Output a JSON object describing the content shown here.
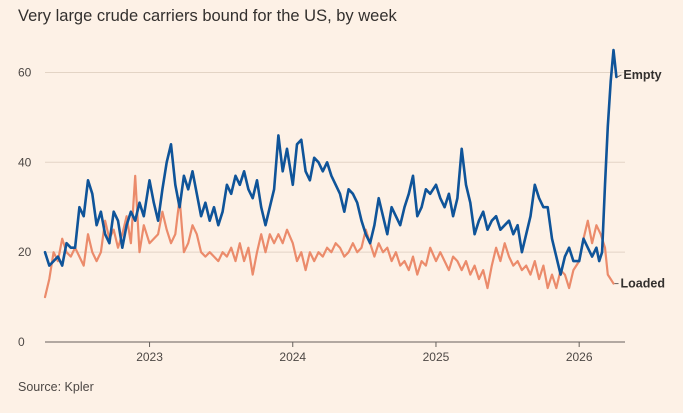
{
  "chart_data": {
    "type": "line",
    "title": "Very large crude carriers bound for the US, by week",
    "source": "Source: Kpler",
    "ylim": [
      0,
      65
    ],
    "y_ticks": [
      0,
      20,
      40,
      60
    ],
    "x_ticks": [
      {
        "label": "2023",
        "x": 2023.0
      },
      {
        "label": "2024",
        "x": 2024.0
      },
      {
        "label": "2025",
        "x": 2025.0
      },
      {
        "label": "2026",
        "x": 2026.0
      }
    ],
    "xlim": [
      2022.27,
      2026.32
    ],
    "grid": true,
    "colors": {
      "empty": "#0f5499",
      "loaded": "#eb8b6b",
      "grid": "#e3d4c5",
      "axis": "#66605c",
      "background": "#fdf1e6"
    },
    "series": [
      {
        "name": "Empty",
        "key": "empty",
        "points": [
          [
            2022.27,
            20
          ],
          [
            2022.3,
            17
          ],
          [
            2022.33,
            18
          ],
          [
            2022.36,
            19
          ],
          [
            2022.39,
            17
          ],
          [
            2022.42,
            22
          ],
          [
            2022.45,
            21
          ],
          [
            2022.48,
            21
          ],
          [
            2022.51,
            30
          ],
          [
            2022.54,
            28
          ],
          [
            2022.57,
            36
          ],
          [
            2022.6,
            33
          ],
          [
            2022.63,
            26
          ],
          [
            2022.66,
            29
          ],
          [
            2022.69,
            24
          ],
          [
            2022.72,
            22
          ],
          [
            2022.75,
            29
          ],
          [
            2022.78,
            27
          ],
          [
            2022.81,
            21
          ],
          [
            2022.84,
            26
          ],
          [
            2022.87,
            29
          ],
          [
            2022.9,
            27
          ],
          [
            2022.93,
            31
          ],
          [
            2022.96,
            28
          ],
          [
            2023.0,
            36
          ],
          [
            2023.03,
            31
          ],
          [
            2023.06,
            27
          ],
          [
            2023.09,
            34
          ],
          [
            2023.12,
            40
          ],
          [
            2023.15,
            44
          ],
          [
            2023.18,
            35
          ],
          [
            2023.21,
            30
          ],
          [
            2023.24,
            37
          ],
          [
            2023.27,
            34
          ],
          [
            2023.3,
            38
          ],
          [
            2023.33,
            33
          ],
          [
            2023.36,
            28
          ],
          [
            2023.39,
            31
          ],
          [
            2023.42,
            27
          ],
          [
            2023.45,
            30
          ],
          [
            2023.48,
            26
          ],
          [
            2023.51,
            29
          ],
          [
            2023.54,
            35
          ],
          [
            2023.57,
            33
          ],
          [
            2023.6,
            37
          ],
          [
            2023.63,
            35
          ],
          [
            2023.66,
            38
          ],
          [
            2023.69,
            34
          ],
          [
            2023.72,
            32
          ],
          [
            2023.75,
            36
          ],
          [
            2023.78,
            30
          ],
          [
            2023.81,
            26
          ],
          [
            2023.84,
            30
          ],
          [
            2023.87,
            34
          ],
          [
            2023.9,
            46
          ],
          [
            2023.93,
            38
          ],
          [
            2023.96,
            43
          ],
          [
            2024.0,
            35
          ],
          [
            2024.03,
            44
          ],
          [
            2024.06,
            45
          ],
          [
            2024.09,
            38
          ],
          [
            2024.12,
            36
          ],
          [
            2024.15,
            41
          ],
          [
            2024.18,
            40
          ],
          [
            2024.21,
            38
          ],
          [
            2024.24,
            40
          ],
          [
            2024.27,
            37
          ],
          [
            2024.3,
            35
          ],
          [
            2024.33,
            33
          ],
          [
            2024.36,
            29
          ],
          [
            2024.39,
            34
          ],
          [
            2024.42,
            33
          ],
          [
            2024.45,
            31
          ],
          [
            2024.48,
            27
          ],
          [
            2024.51,
            24
          ],
          [
            2024.54,
            22
          ],
          [
            2024.57,
            26
          ],
          [
            2024.6,
            32
          ],
          [
            2024.63,
            28
          ],
          [
            2024.66,
            24
          ],
          [
            2024.69,
            30
          ],
          [
            2024.72,
            28
          ],
          [
            2024.75,
            26
          ],
          [
            2024.78,
            30
          ],
          [
            2024.81,
            33
          ],
          [
            2024.84,
            37
          ],
          [
            2024.87,
            28
          ],
          [
            2024.9,
            30
          ],
          [
            2024.93,
            34
          ],
          [
            2024.96,
            33
          ],
          [
            2025.0,
            35
          ],
          [
            2025.03,
            32
          ],
          [
            2025.06,
            30
          ],
          [
            2025.09,
            33
          ],
          [
            2025.12,
            28
          ],
          [
            2025.15,
            32
          ],
          [
            2025.18,
            43
          ],
          [
            2025.21,
            35
          ],
          [
            2025.24,
            31
          ],
          [
            2025.27,
            24
          ],
          [
            2025.3,
            27
          ],
          [
            2025.33,
            29
          ],
          [
            2025.36,
            25
          ],
          [
            2025.39,
            27
          ],
          [
            2025.42,
            28
          ],
          [
            2025.45,
            25
          ],
          [
            2025.48,
            26
          ],
          [
            2025.51,
            27
          ],
          [
            2025.54,
            24
          ],
          [
            2025.57,
            26
          ],
          [
            2025.6,
            20
          ],
          [
            2025.63,
            24
          ],
          [
            2025.66,
            28
          ],
          [
            2025.69,
            35
          ],
          [
            2025.72,
            32
          ],
          [
            2025.75,
            30
          ],
          [
            2025.78,
            30
          ],
          [
            2025.81,
            23
          ],
          [
            2025.84,
            19
          ],
          [
            2025.87,
            15
          ],
          [
            2025.9,
            19
          ],
          [
            2025.93,
            21
          ],
          [
            2025.96,
            18
          ],
          [
            2026.0,
            18
          ],
          [
            2026.03,
            23
          ],
          [
            2026.06,
            21
          ],
          [
            2026.09,
            19
          ],
          [
            2026.12,
            21
          ],
          [
            2026.14,
            18
          ],
          [
            2026.16,
            20
          ],
          [
            2026.18,
            35
          ],
          [
            2026.2,
            48
          ],
          [
            2026.22,
            58
          ],
          [
            2026.24,
            65
          ],
          [
            2026.26,
            59
          ]
        ]
      },
      {
        "name": "Loaded",
        "key": "loaded",
        "points": [
          [
            2022.27,
            10
          ],
          [
            2022.3,
            14
          ],
          [
            2022.33,
            20
          ],
          [
            2022.36,
            18
          ],
          [
            2022.39,
            23
          ],
          [
            2022.42,
            20
          ],
          [
            2022.45,
            19
          ],
          [
            2022.48,
            21
          ],
          [
            2022.51,
            19
          ],
          [
            2022.54,
            17
          ],
          [
            2022.57,
            24
          ],
          [
            2022.6,
            20
          ],
          [
            2022.63,
            18
          ],
          [
            2022.66,
            20
          ],
          [
            2022.69,
            27
          ],
          [
            2022.72,
            23
          ],
          [
            2022.75,
            25
          ],
          [
            2022.78,
            21
          ],
          [
            2022.81,
            24
          ],
          [
            2022.84,
            28
          ],
          [
            2022.87,
            22
          ],
          [
            2022.9,
            37
          ],
          [
            2022.93,
            20
          ],
          [
            2022.96,
            26
          ],
          [
            2023.0,
            22
          ],
          [
            2023.03,
            23
          ],
          [
            2023.06,
            24
          ],
          [
            2023.09,
            29
          ],
          [
            2023.12,
            25
          ],
          [
            2023.15,
            22
          ],
          [
            2023.18,
            24
          ],
          [
            2023.21,
            32
          ],
          [
            2023.24,
            20
          ],
          [
            2023.27,
            22
          ],
          [
            2023.3,
            26
          ],
          [
            2023.33,
            24
          ],
          [
            2023.36,
            20
          ],
          [
            2023.39,
            19
          ],
          [
            2023.42,
            20
          ],
          [
            2023.45,
            19
          ],
          [
            2023.48,
            18
          ],
          [
            2023.51,
            20
          ],
          [
            2023.54,
            19
          ],
          [
            2023.57,
            21
          ],
          [
            2023.6,
            18
          ],
          [
            2023.63,
            22
          ],
          [
            2023.66,
            18
          ],
          [
            2023.69,
            21
          ],
          [
            2023.72,
            15
          ],
          [
            2023.75,
            20
          ],
          [
            2023.78,
            24
          ],
          [
            2023.81,
            20
          ],
          [
            2023.84,
            24
          ],
          [
            2023.87,
            22
          ],
          [
            2023.9,
            24
          ],
          [
            2023.93,
            22
          ],
          [
            2023.96,
            25
          ],
          [
            2024.0,
            22
          ],
          [
            2024.03,
            18
          ],
          [
            2024.06,
            20
          ],
          [
            2024.09,
            16
          ],
          [
            2024.12,
            20
          ],
          [
            2024.15,
            18
          ],
          [
            2024.18,
            20
          ],
          [
            2024.21,
            19
          ],
          [
            2024.24,
            21
          ],
          [
            2024.27,
            20
          ],
          [
            2024.3,
            22
          ],
          [
            2024.33,
            21
          ],
          [
            2024.36,
            19
          ],
          [
            2024.39,
            20
          ],
          [
            2024.42,
            22
          ],
          [
            2024.45,
            20
          ],
          [
            2024.48,
            21
          ],
          [
            2024.51,
            25
          ],
          [
            2024.54,
            22
          ],
          [
            2024.57,
            19
          ],
          [
            2024.6,
            22
          ],
          [
            2024.63,
            20
          ],
          [
            2024.66,
            21
          ],
          [
            2024.69,
            18
          ],
          [
            2024.72,
            20
          ],
          [
            2024.75,
            17
          ],
          [
            2024.78,
            18
          ],
          [
            2024.81,
            16
          ],
          [
            2024.84,
            19
          ],
          [
            2024.87,
            15
          ],
          [
            2024.9,
            18
          ],
          [
            2024.93,
            17
          ],
          [
            2024.96,
            21
          ],
          [
            2025.0,
            18
          ],
          [
            2025.03,
            20
          ],
          [
            2025.06,
            18
          ],
          [
            2025.09,
            16
          ],
          [
            2025.12,
            19
          ],
          [
            2025.15,
            18
          ],
          [
            2025.18,
            16
          ],
          [
            2025.21,
            18
          ],
          [
            2025.24,
            15
          ],
          [
            2025.27,
            17
          ],
          [
            2025.3,
            14
          ],
          [
            2025.33,
            16
          ],
          [
            2025.36,
            12
          ],
          [
            2025.39,
            17
          ],
          [
            2025.42,
            21
          ],
          [
            2025.45,
            18
          ],
          [
            2025.48,
            22
          ],
          [
            2025.51,
            19
          ],
          [
            2025.54,
            17
          ],
          [
            2025.57,
            18
          ],
          [
            2025.6,
            16
          ],
          [
            2025.63,
            17
          ],
          [
            2025.66,
            15
          ],
          [
            2025.69,
            18
          ],
          [
            2025.72,
            14
          ],
          [
            2025.75,
            17
          ],
          [
            2025.78,
            12
          ],
          [
            2025.81,
            15
          ],
          [
            2025.84,
            12
          ],
          [
            2025.87,
            16
          ],
          [
            2025.9,
            15
          ],
          [
            2025.93,
            12
          ],
          [
            2025.96,
            16
          ],
          [
            2026.0,
            18
          ],
          [
            2026.03,
            23
          ],
          [
            2026.06,
            27
          ],
          [
            2026.09,
            22
          ],
          [
            2026.12,
            26
          ],
          [
            2026.15,
            24
          ],
          [
            2026.18,
            21
          ],
          [
            2026.2,
            15
          ],
          [
            2026.22,
            14
          ],
          [
            2026.24,
            13
          ]
        ]
      }
    ]
  }
}
